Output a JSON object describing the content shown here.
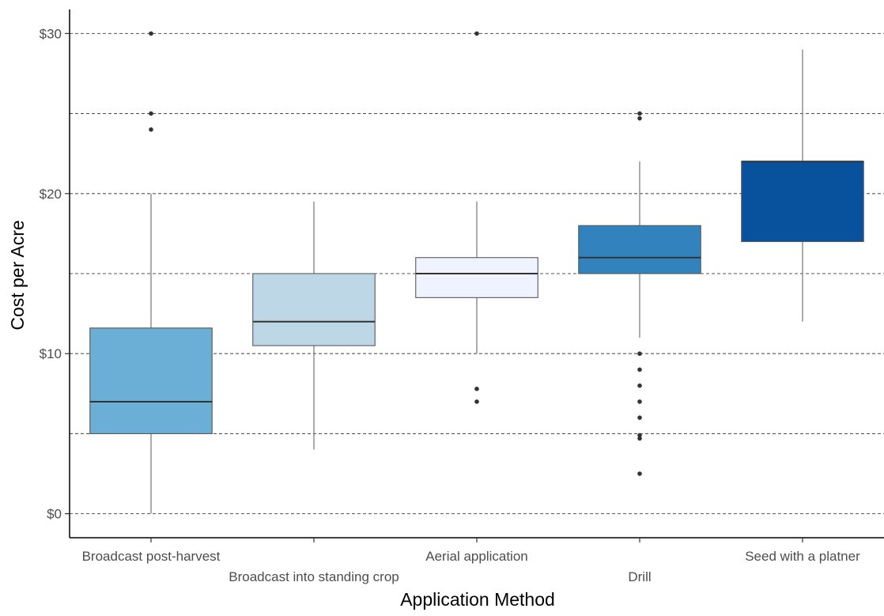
{
  "chart_data": {
    "type": "box",
    "title": "",
    "xlabel": "Application Method",
    "ylabel": "Cost per Acre",
    "ylim": [
      -1.5,
      31.5
    ],
    "yticks": [
      0,
      10,
      20,
      30
    ],
    "ytick_labels": [
      "$0",
      "$10",
      "$20",
      "$30"
    ],
    "gridlines_y": [
      0,
      5,
      10,
      15,
      20,
      25,
      30
    ],
    "grid": "horizontal dashed",
    "legend": "none",
    "categories": [
      "Broadcast post-harvest",
      "Broadcast into standing crop",
      "Aerial application",
      "Drill",
      "Seed with a platner"
    ],
    "boxes": [
      {
        "category": "Broadcast post-harvest",
        "whisker_low": 0,
        "q1": 5,
        "median": 7,
        "q3": 11.6,
        "whisker_high": 20,
        "outliers": [
          24,
          25,
          30
        ],
        "color": "#6baed6"
      },
      {
        "category": "Broadcast into standing crop",
        "whisker_low": 4,
        "q1": 10.5,
        "median": 12,
        "q3": 15,
        "whisker_high": 19.5,
        "outliers": [],
        "color": "#bdd7e7"
      },
      {
        "category": "Aerial application",
        "whisker_low": 10,
        "q1": 13.5,
        "median": 15,
        "q3": 16,
        "whisker_high": 19.5,
        "outliers": [
          7,
          7.8,
          30
        ],
        "color": "#eff3ff"
      },
      {
        "category": "Drill",
        "whisker_low": 11,
        "q1": 15,
        "median": 16,
        "q3": 18,
        "whisker_high": 22,
        "outliers": [
          2.5,
          4.7,
          4.9,
          6,
          7,
          8,
          9,
          10,
          24.7,
          25
        ],
        "color": "#3182bd"
      },
      {
        "category": "Seed with a platner",
        "whisker_low": 12,
        "q1": 17,
        "median": 22,
        "q3": 22,
        "whisker_high": 29,
        "outliers": [],
        "color": "#08519c"
      }
    ]
  }
}
